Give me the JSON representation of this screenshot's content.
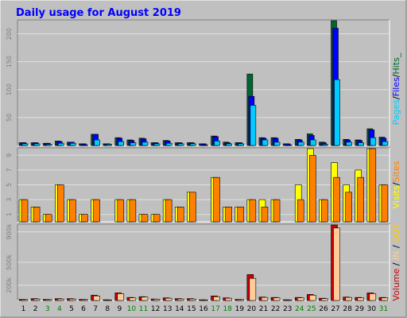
{
  "title": "Daily usage for August 2019",
  "colors": {
    "background": "#c0c0c0",
    "plot": "#c0c0c0",
    "title": "#0000ff",
    "grid": "#e0e0e0",
    "hits": "#006633",
    "files": "#0000ff",
    "pages": "#00ccff",
    "visits": "#ffff00",
    "sites": "#ff8000",
    "volume": "#cc0000",
    "in": "#ffcc99",
    "out": "#ffcc00",
    "weekend": "#008000",
    "weekday": "#000000"
  },
  "chart_data": [
    {
      "type": "bar",
      "name": "hits-files-pages",
      "legend": {
        "pages": "Pages",
        "files": "Files",
        "hits": "Hits",
        "separator": "/",
        "trail": "_"
      },
      "categories": [
        "1",
        "2",
        "3",
        "4",
        "5",
        "6",
        "7",
        "8",
        "9",
        "10",
        "11",
        "12",
        "13",
        "14",
        "15",
        "16",
        "17",
        "18",
        "19",
        "20",
        "21",
        "22",
        "23",
        "24",
        "25",
        "26",
        "27",
        "28",
        "29",
        "30",
        "31"
      ],
      "yticks": [
        "50",
        "100",
        "150",
        "200"
      ],
      "ylim": [
        0,
        225
      ],
      "series": [
        {
          "key": "hits",
          "values": [
            5,
            5,
            4,
            8,
            6,
            3,
            20,
            3,
            14,
            10,
            13,
            5,
            9,
            5,
            5,
            3,
            17,
            6,
            5,
            128,
            14,
            14,
            3,
            11,
            21,
            6,
            230,
            11,
            10,
            30,
            15
          ]
        },
        {
          "key": "files",
          "values": [
            5,
            5,
            4,
            7,
            6,
            3,
            20,
            3,
            13,
            9,
            12,
            5,
            8,
            5,
            5,
            3,
            16,
            5,
            5,
            88,
            13,
            13,
            3,
            10,
            18,
            5,
            210,
            10,
            9,
            28,
            13
          ]
        },
        {
          "key": "pages",
          "values": [
            3,
            3,
            2,
            4,
            4,
            1,
            10,
            2,
            7,
            5,
            6,
            3,
            4,
            3,
            3,
            1,
            8,
            3,
            3,
            72,
            10,
            6,
            1,
            6,
            10,
            2,
            118,
            6,
            5,
            14,
            7
          ]
        }
      ]
    },
    {
      "type": "bar",
      "name": "visits-sites",
      "legend": {
        "visits": "Visits",
        "sites": "Sites",
        "separator": "/"
      },
      "categories": [
        "1",
        "2",
        "3",
        "4",
        "5",
        "6",
        "7",
        "8",
        "9",
        "10",
        "11",
        "12",
        "13",
        "14",
        "15",
        "16",
        "17",
        "18",
        "19",
        "20",
        "21",
        "22",
        "23",
        "24",
        "25",
        "26",
        "27",
        "28",
        "29",
        "30",
        "31"
      ],
      "yticks": [
        "1",
        "3",
        "5",
        "7",
        "9"
      ],
      "ylim": [
        0,
        10
      ],
      "series": [
        {
          "key": "visits",
          "values": [
            3,
            2,
            1,
            5,
            3,
            1,
            3,
            0,
            3,
            3,
            1,
            1,
            3,
            2,
            4,
            0,
            6,
            2,
            2,
            3,
            3,
            3,
            0,
            5,
            10,
            3,
            8,
            5,
            7,
            10,
            5
          ]
        },
        {
          "key": "sites",
          "values": [
            3,
            2,
            1,
            5,
            3,
            1,
            3,
            0,
            3,
            3,
            1,
            1,
            3,
            2,
            4,
            0,
            6,
            2,
            2,
            3,
            2,
            3,
            0,
            3,
            9,
            3,
            6,
            4,
            6,
            10,
            5
          ]
        }
      ]
    },
    {
      "type": "bar",
      "name": "volume-in-out",
      "legend": {
        "volume": "Volume",
        "in": "IN",
        "out": "OUT",
        "separator": "/"
      },
      "categories": [
        "1",
        "2",
        "3",
        "4",
        "5",
        "6",
        "7",
        "8",
        "9",
        "10",
        "11",
        "12",
        "13",
        "14",
        "15",
        "16",
        "17",
        "18",
        "19",
        "20",
        "21",
        "22",
        "23",
        "24",
        "25",
        "26",
        "27",
        "28",
        "29",
        "30",
        "31"
      ],
      "yticks": [
        "200k",
        "500k",
        "900k"
      ],
      "ylim": [
        0,
        1000000
      ],
      "series": [
        {
          "key": "volume",
          "values": [
            15000,
            25000,
            15000,
            25000,
            25000,
            15000,
            70000,
            10000,
            100000,
            40000,
            50000,
            20000,
            35000,
            25000,
            25000,
            10000,
            60000,
            35000,
            15000,
            340000,
            45000,
            40000,
            10000,
            40000,
            80000,
            30000,
            1000000,
            45000,
            40000,
            100000,
            40000
          ]
        },
        {
          "key": "in",
          "values": [
            12000,
            20000,
            12000,
            20000,
            20000,
            12000,
            60000,
            8000,
            90000,
            35000,
            45000,
            18000,
            30000,
            20000,
            20000,
            8000,
            50000,
            30000,
            12000,
            290000,
            40000,
            35000,
            8000,
            35000,
            70000,
            25000,
            950000,
            40000,
            35000,
            90000,
            35000
          ]
        }
      ]
    }
  ]
}
